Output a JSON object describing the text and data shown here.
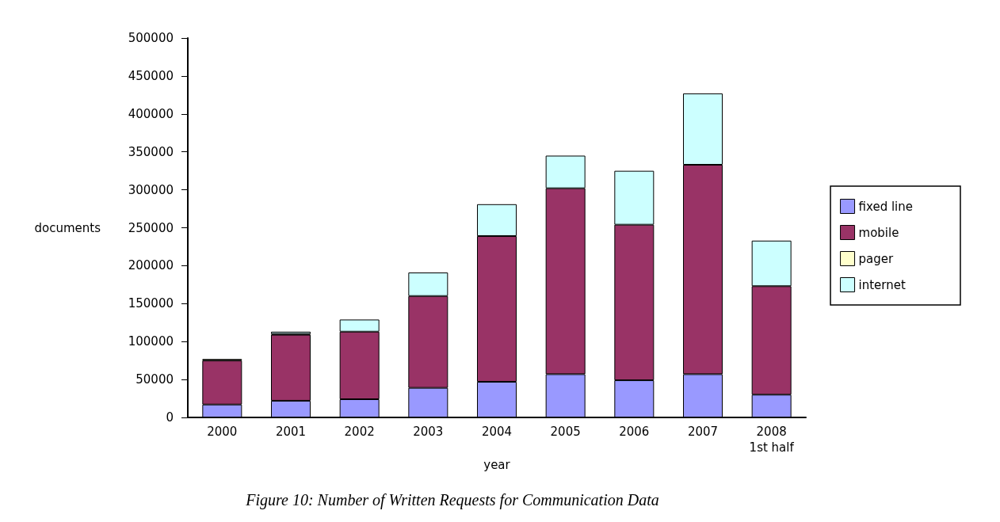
{
  "chart_data": {
    "type": "bar",
    "stacked": true,
    "xlabel": "year",
    "ylabel": "documents",
    "categories": [
      "2000",
      "2001",
      "2002",
      "2003",
      "2004",
      "2005",
      "2006",
      "2007",
      "2008\n1st half"
    ],
    "series": [
      {
        "name": "fixed line",
        "color": "#9999ff",
        "values": [
          17000,
          22000,
          24000,
          39000,
          47000,
          57000,
          49000,
          57000,
          30000
        ]
      },
      {
        "name": "mobile",
        "color": "#993366",
        "values": [
          58000,
          87000,
          89000,
          121000,
          192000,
          245000,
          205000,
          276000,
          143000
        ]
      },
      {
        "name": "pager",
        "color": "#ffffcc",
        "values": [
          2000,
          1000,
          0,
          0,
          0,
          0,
          0,
          0,
          0
        ]
      },
      {
        "name": "internet",
        "color": "#ccffff",
        "values": [
          0,
          3000,
          16000,
          31000,
          42000,
          43000,
          71000,
          94000,
          60000
        ]
      }
    ],
    "ylim": [
      0,
      500000
    ],
    "yticks": [
      0,
      50000,
      100000,
      150000,
      200000,
      250000,
      300000,
      350000,
      400000,
      450000,
      500000
    ],
    "grid": false,
    "legend": "right",
    "annotations": [
      "Figure 10: Number of Written Requests for Communication Data"
    ]
  }
}
